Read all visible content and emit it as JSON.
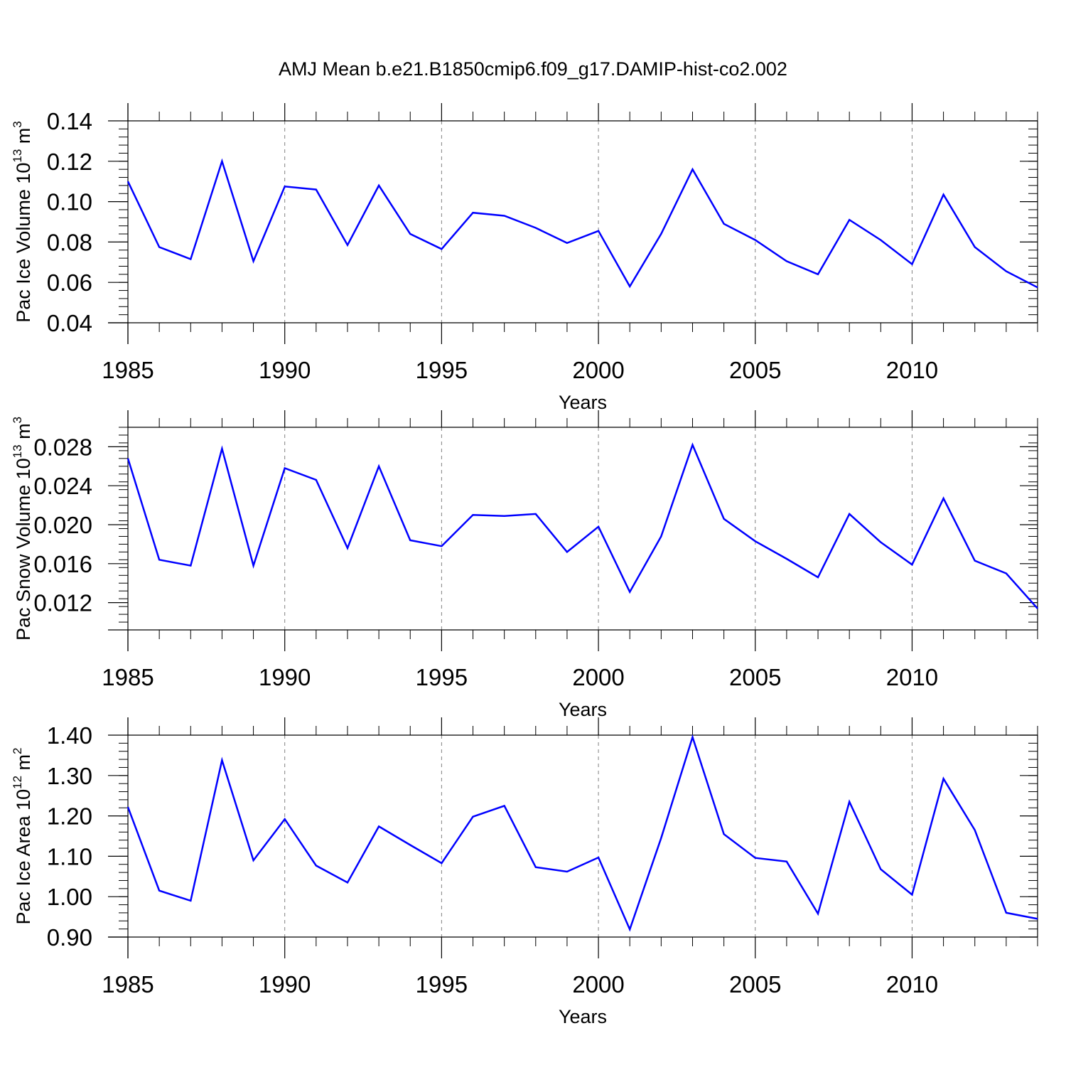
{
  "title": "AMJ Mean b.e21.B1850cmip6.f09_g17.DAMIP-hist-co2.002",
  "line_color": "#0000ff",
  "chart_data": [
    {
      "type": "line",
      "ylabel_main": "Pac Ice Volume 10",
      "ylabel_exp": "13",
      "ylabel_unit": " m",
      "ylabel_unit_exp": "3",
      "xlabel": "Years",
      "xlim": [
        1985,
        2014
      ],
      "ylim": [
        0.04,
        0.14
      ],
      "xticks": [
        "1985",
        "1990",
        "1995",
        "2000",
        "2005",
        "2010"
      ],
      "xtick_values": [
        1985,
        1990,
        1995,
        2000,
        2005,
        2010
      ],
      "yticks": [
        "0.04",
        "0.06",
        "0.08",
        "0.10",
        "0.12",
        "0.14"
      ],
      "ytick_values": [
        0.04,
        0.06,
        0.08,
        0.1,
        0.12,
        0.14
      ],
      "y_minor_step": 0.004,
      "grid": "vertical dashed at major x ticks",
      "x": [
        1985,
        1986,
        1987,
        1988,
        1989,
        1990,
        1991,
        1992,
        1993,
        1994,
        1995,
        1996,
        1997,
        1998,
        1999,
        2000,
        2001,
        2002,
        2003,
        2004,
        2005,
        2006,
        2007,
        2008,
        2009,
        2010,
        2011,
        2012,
        2013,
        2014
      ],
      "values": [
        0.11,
        0.0775,
        0.0715,
        0.12,
        0.0705,
        0.1075,
        0.106,
        0.0785,
        0.108,
        0.084,
        0.0765,
        0.0945,
        0.093,
        0.087,
        0.0795,
        0.0855,
        0.058,
        0.084,
        0.116,
        0.089,
        0.081,
        0.0705,
        0.064,
        0.091,
        0.081,
        0.069,
        0.1035,
        0.0775,
        0.0655,
        0.0575
      ]
    },
    {
      "type": "line",
      "ylabel_main": "Pac Snow Volume 10",
      "ylabel_exp": "13",
      "ylabel_unit": " m",
      "ylabel_unit_exp": "3",
      "xlabel": "Years",
      "xlim": [
        1985,
        2014
      ],
      "ylim": [
        0.0092,
        0.03
      ],
      "xticks": [
        "1985",
        "1990",
        "1995",
        "2000",
        "2005",
        "2010"
      ],
      "xtick_values": [
        1985,
        1990,
        1995,
        2000,
        2005,
        2010
      ],
      "yticks": [
        "0.012",
        "0.016",
        "0.020",
        "0.024",
        "0.028"
      ],
      "ytick_values": [
        0.012,
        0.016,
        0.02,
        0.024,
        0.028
      ],
      "y_minor_step": 0.0008,
      "grid": "vertical dashed at major x ticks",
      "x": [
        1985,
        1986,
        1987,
        1988,
        1989,
        1990,
        1991,
        1992,
        1993,
        1994,
        1995,
        1996,
        1997,
        1998,
        1999,
        2000,
        2001,
        2002,
        2003,
        2004,
        2005,
        2006,
        2007,
        2008,
        2009,
        2010,
        2011,
        2012,
        2013,
        2014
      ],
      "values": [
        0.0268,
        0.0164,
        0.0158,
        0.0278,
        0.0158,
        0.0258,
        0.0246,
        0.0176,
        0.026,
        0.0184,
        0.0178,
        0.021,
        0.0209,
        0.0211,
        0.0172,
        0.0198,
        0.0131,
        0.0188,
        0.0282,
        0.0206,
        0.0183,
        0.0165,
        0.0146,
        0.0211,
        0.0182,
        0.0159,
        0.0227,
        0.0163,
        0.015,
        0.0114
      ]
    },
    {
      "type": "line",
      "ylabel_main": "Pac Ice Area 10",
      "ylabel_exp": "12",
      "ylabel_unit": " m",
      "ylabel_unit_exp": "2",
      "xlabel": "Years",
      "xlim": [
        1985,
        2014
      ],
      "ylim": [
        0.9,
        1.4
      ],
      "xticks": [
        "1985",
        "1990",
        "1995",
        "2000",
        "2005",
        "2010"
      ],
      "xtick_values": [
        1985,
        1990,
        1995,
        2000,
        2005,
        2010
      ],
      "yticks": [
        "0.90",
        "1.00",
        "1.10",
        "1.20",
        "1.30",
        "1.40"
      ],
      "ytick_values": [
        0.9,
        1.0,
        1.1,
        1.2,
        1.3,
        1.4
      ],
      "y_minor_step": 0.02,
      "grid": "vertical dashed at major x ticks",
      "x": [
        1985,
        1986,
        1987,
        1988,
        1989,
        1990,
        1991,
        1992,
        1993,
        1994,
        1995,
        1996,
        1997,
        1998,
        1999,
        2000,
        2001,
        2002,
        2003,
        2004,
        2005,
        2006,
        2007,
        2008,
        2009,
        2010,
        2011,
        2012,
        2013,
        2014
      ],
      "values": [
        1.222,
        1.015,
        0.99,
        1.338,
        1.09,
        1.192,
        1.077,
        1.035,
        1.174,
        1.128,
        1.083,
        1.198,
        1.225,
        1.073,
        1.062,
        1.097,
        0.919,
        1.145,
        1.395,
        1.155,
        1.096,
        1.087,
        0.958,
        1.235,
        1.068,
        1.005,
        1.292,
        1.165,
        0.96,
        0.945
      ]
    }
  ]
}
